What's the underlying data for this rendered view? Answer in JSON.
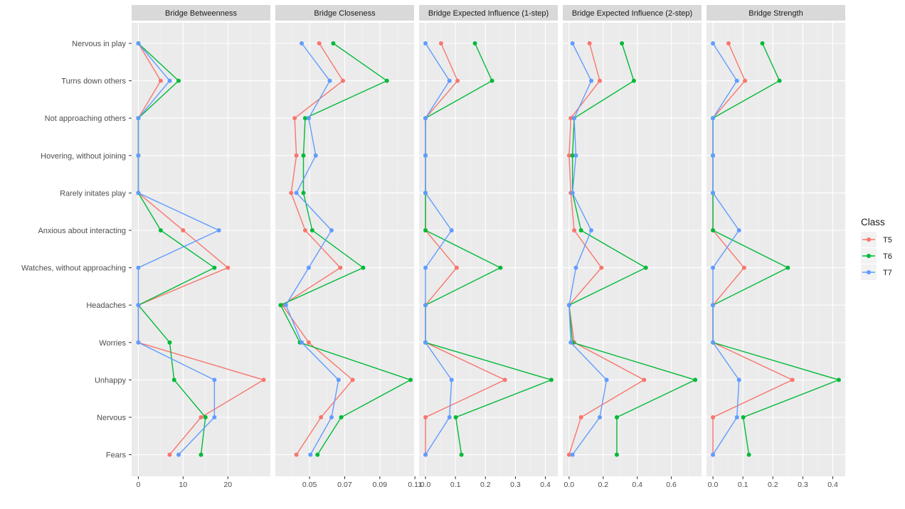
{
  "colors": {
    "T5": "#F8766D",
    "T6": "#00BA38",
    "T7": "#619CFF",
    "panel_bg": "#EBEBEB",
    "strip_bg": "#D9D9D9",
    "grid": "#FFFFFF"
  },
  "legend": {
    "title": "Class",
    "entries": [
      "T5",
      "T6",
      "T7"
    ],
    "position": "right"
  },
  "chart_data": {
    "type": "line",
    "orientation": "horizontal-facets",
    "grid": true,
    "categories": [
      "Nervous in play",
      "Turns down others",
      "Not approaching others",
      "Hovering, without joining",
      "Rarely initates play",
      "Anxious about interacting",
      "Watches, without approaching",
      "Headaches",
      "Worries",
      "Unhappy",
      "Nervous",
      "Fears"
    ],
    "panels": [
      {
        "title": "Bridge Betweenness",
        "xlim": [
          -1.5,
          29.5
        ],
        "ticks": [
          0,
          10,
          20
        ],
        "tick_labels": [
          "0",
          "10",
          "20"
        ],
        "series": [
          {
            "name": "T5",
            "values": [
              0,
              5,
              0,
              0,
              0,
              10,
              20,
              0,
              0,
              28,
              14,
              7
            ]
          },
          {
            "name": "T6",
            "values": [
              0,
              9,
              0,
              0,
              0,
              5,
              17,
              0,
              7,
              8,
              15,
              14
            ]
          },
          {
            "name": "T7",
            "values": [
              0,
              7,
              0,
              0,
              0,
              18,
              0,
              0,
              0,
              17,
              17,
              9
            ]
          }
        ]
      },
      {
        "title": "Bridge Closeness",
        "xlim": [
          0.0305,
          0.1095
        ],
        "ticks": [
          0.05,
          0.07,
          0.09,
          0.11
        ],
        "tick_labels": [
          "0.05",
          "0.07",
          "0.09",
          "0.11"
        ],
        "series": [
          {
            "name": "T5",
            "values": [
              0.0555,
              0.069,
              0.0415,
              0.0425,
              0.0395,
              0.0475,
              0.0675,
              0.0345,
              0.0495,
              0.0745,
              0.0565,
              0.0425
            ]
          },
          {
            "name": "T6",
            "values": [
              0.0635,
              0.094,
              0.0475,
              0.0465,
              0.0465,
              0.0515,
              0.0805,
              0.0335,
              0.0445,
              0.1075,
              0.068,
              0.0545
            ]
          },
          {
            "name": "T7",
            "values": [
              0.0455,
              0.0615,
              0.0495,
              0.0535,
              0.0425,
              0.0625,
              0.0495,
              0.0365,
              0.0455,
              0.0665,
              0.0625,
              0.0505
            ]
          }
        ]
      },
      {
        "title": "Bridge Expected Influence (1-step)",
        "xlim": [
          -0.0215,
          0.4415
        ],
        "ticks": [
          0.0,
          0.1,
          0.2,
          0.3,
          0.4
        ],
        "tick_labels": [
          "0.0",
          "0.1",
          "0.2",
          "0.3",
          "0.4"
        ],
        "series": [
          {
            "name": "T5",
            "values": [
              0.052,
              0.107,
              0.0,
              0.0,
              0.0,
              0.0,
              0.104,
              0.0,
              0.0,
              0.265,
              0.0,
              0.0
            ]
          },
          {
            "name": "T6",
            "values": [
              0.165,
              0.222,
              0.0,
              0.0,
              0.0,
              0.0,
              0.25,
              0.0,
              0.0,
              0.42,
              0.101,
              0.12
            ]
          },
          {
            "name": "T7",
            "values": [
              0.0,
              0.08,
              0.0,
              0.0,
              0.0,
              0.087,
              0.0,
              0.0,
              0.0,
              0.087,
              0.08,
              0.0
            ]
          }
        ]
      },
      {
        "title": "Bridge Expected Influence (2-step)",
        "xlim": [
          -0.037,
          0.777
        ],
        "ticks": [
          0.0,
          0.2,
          0.4,
          0.6
        ],
        "tick_labels": [
          "0.0",
          "0.2",
          "0.4",
          "0.6"
        ],
        "series": [
          {
            "name": "T5",
            "values": [
              0.12,
              0.18,
              0.01,
              0.0,
              0.01,
              0.03,
              0.19,
              0.0,
              0.03,
              0.44,
              0.07,
              0.0
            ]
          },
          {
            "name": "T6",
            "values": [
              0.31,
              0.38,
              0.03,
              0.02,
              0.02,
              0.07,
              0.45,
              0.0,
              0.02,
              0.74,
              0.28,
              0.28
            ]
          },
          {
            "name": "T7",
            "values": [
              0.02,
              0.13,
              0.03,
              0.04,
              0.02,
              0.13,
              0.04,
              0.0,
              0.01,
              0.22,
              0.18,
              0.02
            ]
          }
        ]
      },
      {
        "title": "Bridge Strength",
        "xlim": [
          -0.0215,
          0.4415
        ],
        "ticks": [
          0.0,
          0.1,
          0.2,
          0.3,
          0.4
        ],
        "tick_labels": [
          "0.0",
          "0.1",
          "0.2",
          "0.3",
          "0.4"
        ],
        "series": [
          {
            "name": "T5",
            "values": [
              0.052,
              0.107,
              0.0,
              0.0,
              0.0,
              0.0,
              0.104,
              0.0,
              0.0,
              0.265,
              0.0,
              0.0
            ]
          },
          {
            "name": "T6",
            "values": [
              0.165,
              0.222,
              0.0,
              0.0,
              0.0,
              0.0,
              0.25,
              0.0,
              0.0,
              0.42,
              0.101,
              0.12
            ]
          },
          {
            "name": "T7",
            "values": [
              0.0,
              0.08,
              0.0,
              0.0,
              0.0,
              0.087,
              0.0,
              0.0,
              0.0,
              0.087,
              0.08,
              0.0
            ]
          }
        ]
      }
    ]
  }
}
